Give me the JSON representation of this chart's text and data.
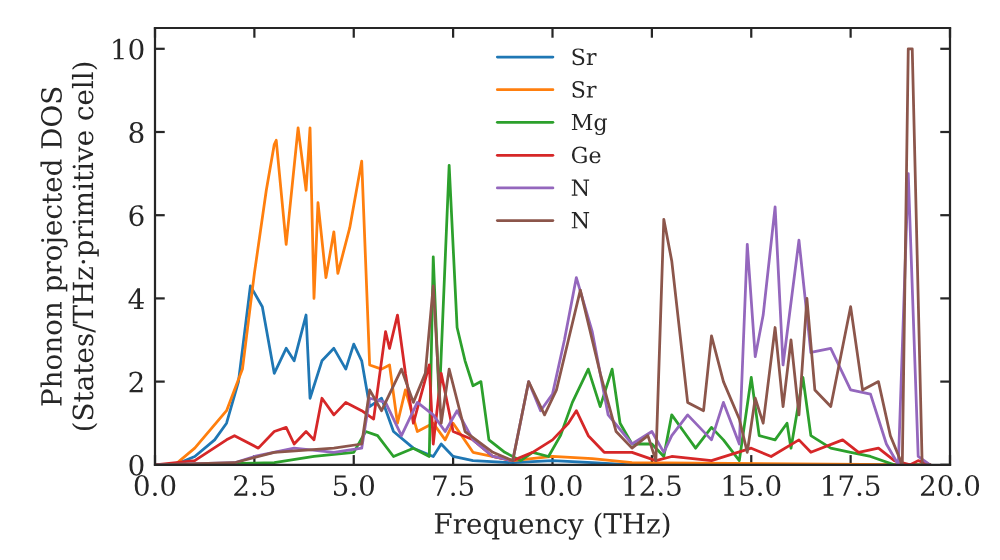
{
  "chart_data": {
    "type": "line",
    "xlabel": "Frequency (THz)",
    "ylabel": "Phonon projected DOS\n(States/THz·primitive cell)",
    "xlim": [
      0,
      20
    ],
    "ylim": [
      0,
      10.5
    ],
    "xticks": [
      {
        "value": 0,
        "label": "0.0"
      },
      {
        "value": 2.5,
        "label": "2.5"
      },
      {
        "value": 5,
        "label": "5.0"
      },
      {
        "value": 7.5,
        "label": "7.5"
      },
      {
        "value": 10,
        "label": "10.0"
      },
      {
        "value": 12.5,
        "label": "12.5"
      },
      {
        "value": 15,
        "label": "15.0"
      },
      {
        "value": 17.5,
        "label": "17.5"
      },
      {
        "value": 20,
        "label": "20.0"
      }
    ],
    "yticks": [
      0,
      2,
      4,
      6,
      8,
      10
    ],
    "grid": false,
    "legend": "top",
    "marker": "none",
    "line_style": "solid",
    "series": [
      {
        "name": "Sr",
        "color": "#1f77b4",
        "x": [
          0,
          0.5,
          1.0,
          1.5,
          1.8,
          2.1,
          2.4,
          2.7,
          3.0,
          3.3,
          3.5,
          3.8,
          3.9,
          4.2,
          4.5,
          4.8,
          5.0,
          5.2,
          5.4,
          5.7,
          6.0,
          6.5,
          7.0,
          7.2,
          7.5,
          8,
          9,
          10,
          11,
          12,
          19.5
        ],
        "values": [
          0,
          0,
          0.2,
          0.6,
          1,
          2,
          4.3,
          3.8,
          2.2,
          2.8,
          2.5,
          3.6,
          1.6,
          2.5,
          2.8,
          2.3,
          2.9,
          2.5,
          1.4,
          1.6,
          0.8,
          0.4,
          0.2,
          0.5,
          0.2,
          0.1,
          0.05,
          0.1,
          0.05,
          0,
          0
        ]
      },
      {
        "name": "Sr",
        "color": "#ff7f0e",
        "x": [
          0,
          0.5,
          1.0,
          1.8,
          2.2,
          2.5,
          2.8,
          3.0,
          3.05,
          3.3,
          3.6,
          3.8,
          3.9,
          4.0,
          4.1,
          4.3,
          4.5,
          4.6,
          4.9,
          5.2,
          5.4,
          5.7,
          5.9,
          6.1,
          6.3,
          6.6,
          7.0,
          7.3,
          7.5,
          8.0,
          9,
          10,
          11,
          12,
          19.5
        ],
        "values": [
          0,
          0,
          0.4,
          1.3,
          2.3,
          4.6,
          6.6,
          7.7,
          7.8,
          5.3,
          8.1,
          6.6,
          8.1,
          4.0,
          6.3,
          4.5,
          5.6,
          4.6,
          5.7,
          7.3,
          2.4,
          2.3,
          2.4,
          1.0,
          1.8,
          0.8,
          1.0,
          0.6,
          1.0,
          0.3,
          0.1,
          0.2,
          0.15,
          0.05,
          0
        ]
      },
      {
        "name": "Mg",
        "color": "#2ca02c",
        "x": [
          0,
          3,
          4,
          5,
          5.3,
          5.6,
          6,
          6.5,
          6.9,
          7.0,
          7.15,
          7.4,
          7.6,
          7.8,
          8.0,
          8.2,
          8.4,
          8.8,
          9.2,
          9.5,
          9.9,
          10.2,
          10.5,
          10.9,
          11.2,
          11.5,
          11.7,
          12,
          12.5,
          12.8,
          13.0,
          13.3,
          13.6,
          14.0,
          14.3,
          14.7,
          15.0,
          15.2,
          15.6,
          15.9,
          16.0,
          16.3,
          16.5,
          17,
          17.5,
          18,
          18.6,
          19.5
        ],
        "values": [
          0,
          0.05,
          0.2,
          0.3,
          0.8,
          0.7,
          0.2,
          0.4,
          0.2,
          5.0,
          1.5,
          7.2,
          3.3,
          2.5,
          1.9,
          2.0,
          0.6,
          0.3,
          0.1,
          0.3,
          0.2,
          0.7,
          1.5,
          2.3,
          1.4,
          2.3,
          1.0,
          0.5,
          0.5,
          0.2,
          1.2,
          0.8,
          0.4,
          0.9,
          0.6,
          0.1,
          2.1,
          0.7,
          0.6,
          1.0,
          0.4,
          2.1,
          0.7,
          0.4,
          0.3,
          0.2,
          0,
          0
        ]
      },
      {
        "name": "Ge",
        "color": "#d62728",
        "x": [
          0,
          1,
          1.8,
          2.0,
          2.6,
          3.0,
          3.3,
          3.5,
          3.8,
          4.0,
          4.2,
          4.5,
          4.8,
          5.2,
          5.5,
          5.8,
          5.9,
          6.1,
          6.3,
          6.5,
          6.9,
          7.0,
          7.2,
          7.5,
          8,
          8.5,
          9,
          9.5,
          10,
          10.4,
          10.6,
          10.9,
          11.3,
          12,
          12.6,
          13,
          14,
          15,
          15.5,
          16.2,
          16.5,
          17.3,
          17.7,
          18.2,
          18.6,
          19,
          19.2,
          19.5
        ],
        "values": [
          0,
          0.1,
          0.6,
          0.7,
          0.4,
          0.8,
          0.9,
          0.5,
          0.8,
          0.6,
          1.6,
          1.2,
          1.5,
          1.3,
          1.1,
          3.2,
          2.8,
          3.6,
          2.2,
          1.0,
          2.4,
          0.5,
          2.2,
          0.8,
          0.6,
          0.2,
          0.1,
          0.3,
          0.6,
          1.0,
          1.3,
          0.7,
          0.3,
          0.3,
          0.1,
          0.2,
          0.1,
          0.4,
          0.2,
          0.6,
          0.3,
          0.6,
          0.3,
          0.4,
          0.1,
          0,
          0.1,
          0
        ]
      },
      {
        "name": "N",
        "color": "#9467bd",
        "x": [
          0,
          2,
          2.5,
          3.5,
          4.5,
          5.2,
          5.4,
          5.8,
          6.2,
          6.6,
          7.0,
          7.3,
          7.6,
          8.0,
          8.5,
          9,
          9.4,
          9.7,
          10,
          10.3,
          10.6,
          11.0,
          11.4,
          12,
          12.5,
          12.8,
          13.0,
          13.4,
          14,
          14.3,
          14.7,
          14.9,
          15.1,
          15.3,
          15.6,
          15.8,
          16.2,
          16.5,
          17,
          17.5,
          18.0,
          18.4,
          18.7,
          18.95,
          19.2,
          19.5
        ],
        "values": [
          0,
          0.05,
          0.2,
          0.4,
          0.3,
          0.4,
          1.6,
          1.5,
          0.7,
          1.5,
          1.2,
          0.8,
          1.3,
          0.6,
          0.2,
          0.1,
          2.0,
          1.3,
          1.7,
          3.0,
          4.5,
          3.2,
          1.2,
          0.5,
          0.8,
          0.3,
          0.7,
          1.2,
          0.6,
          1.5,
          0.5,
          5.3,
          2.6,
          3.6,
          6.2,
          2.4,
          5.4,
          2.7,
          2.8,
          1.8,
          1.7,
          0.5,
          0,
          7.0,
          0.2,
          0
        ]
      },
      {
        "name": "N",
        "color": "#8c564b",
        "x": [
          0,
          2,
          3,
          4.5,
          5.2,
          5.4,
          5.7,
          6.2,
          6.5,
          6.8,
          7.0,
          7.2,
          7.4,
          7.8,
          8.5,
          9.0,
          9.4,
          9.8,
          10.1,
          10.4,
          10.7,
          11.2,
          11.6,
          12,
          12.4,
          12.6,
          12.8,
          13.0,
          13.4,
          13.8,
          14.0,
          14.3,
          14.7,
          14.9,
          15.1,
          15.3,
          15.6,
          15.8,
          16.0,
          16.2,
          16.4,
          16.6,
          17.0,
          17.5,
          17.8,
          18.2,
          18.5,
          18.8,
          18.95,
          19.05,
          19.3,
          19.5
        ],
        "values": [
          0,
          0.05,
          0.3,
          0.4,
          0.5,
          1.8,
          1.3,
          2.3,
          1.5,
          2.2,
          4.3,
          1.0,
          2.3,
          0.8,
          0.3,
          0.1,
          2.0,
          1.2,
          1.8,
          3.0,
          4.2,
          2.2,
          0.8,
          0.4,
          0.7,
          0.1,
          5.9,
          4.9,
          1.5,
          1.3,
          3.1,
          2.0,
          1.1,
          0.3,
          1.6,
          1.0,
          3.3,
          1.4,
          3.0,
          1.2,
          4.0,
          1.8,
          1.4,
          3.8,
          1.8,
          2.0,
          0.7,
          0,
          10.0,
          10.0,
          0,
          0
        ]
      }
    ]
  }
}
